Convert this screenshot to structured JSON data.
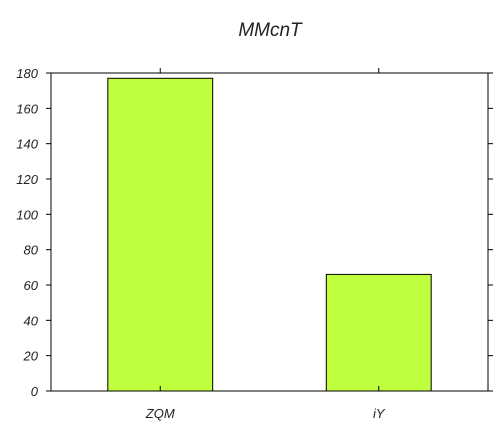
{
  "chart_data": {
    "type": "bar",
    "title": "MMcnT",
    "xlabel": "",
    "ylabel": "",
    "categories": [
      "ZQM",
      "iY"
    ],
    "values": [
      177,
      66
    ],
    "ylim": [
      0,
      180
    ],
    "yticks": [
      0,
      20,
      40,
      60,
      80,
      100,
      120,
      140,
      160,
      180
    ],
    "bar_color": "#c0ff3e",
    "grid": false,
    "legend": "none"
  }
}
